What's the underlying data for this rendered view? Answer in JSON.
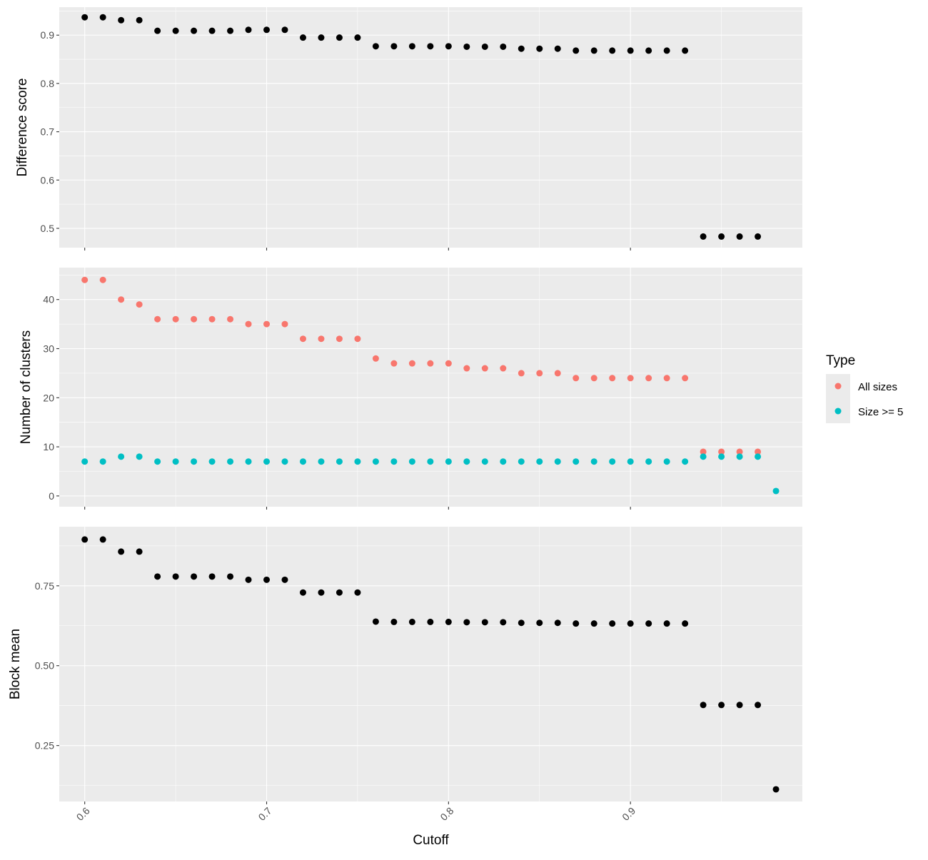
{
  "chart_data": [
    {
      "type": "scatter",
      "ylabel": "Difference score",
      "xlim": [
        0.586,
        0.9945
      ],
      "ylim": [
        0.46,
        0.958
      ],
      "yticks": [
        0.5,
        0.6,
        0.7,
        0.8,
        0.9
      ],
      "ytick_labels": [
        "0.5",
        "0.6",
        "0.7",
        "0.8",
        "0.9"
      ],
      "series": [
        {
          "color": "#000000",
          "x": [
            0.6,
            0.61,
            0.62,
            0.63,
            0.64,
            0.65,
            0.66,
            0.67,
            0.68,
            0.69,
            0.7,
            0.71,
            0.72,
            0.73,
            0.74,
            0.75,
            0.76,
            0.77,
            0.78,
            0.79,
            0.8,
            0.81,
            0.82,
            0.83,
            0.84,
            0.85,
            0.86,
            0.87,
            0.88,
            0.89,
            0.9,
            0.91,
            0.92,
            0.93,
            0.94,
            0.95,
            0.96,
            0.97
          ],
          "y": [
            0.937,
            0.937,
            0.931,
            0.931,
            0.909,
            0.909,
            0.909,
            0.909,
            0.909,
            0.911,
            0.911,
            0.911,
            0.895,
            0.895,
            0.895,
            0.895,
            0.877,
            0.877,
            0.877,
            0.877,
            0.877,
            0.876,
            0.876,
            0.876,
            0.872,
            0.872,
            0.872,
            0.868,
            0.868,
            0.868,
            0.868,
            0.868,
            0.868,
            0.868,
            0.483,
            0.483,
            0.483,
            0.483
          ]
        }
      ]
    },
    {
      "type": "scatter",
      "ylabel": "Number of clusters",
      "xlim": [
        0.586,
        0.9945
      ],
      "ylim": [
        -2.2,
        46.5
      ],
      "yticks": [
        0,
        10,
        20,
        30,
        40
      ],
      "ytick_labels": [
        "0",
        "10",
        "20",
        "30",
        "40"
      ],
      "legend": {
        "title": "Type",
        "position": "right",
        "entries": [
          "All sizes",
          "Size >= 5"
        ]
      },
      "series": [
        {
          "name": "All sizes",
          "color": "#F8766D",
          "x": [
            0.6,
            0.61,
            0.62,
            0.63,
            0.64,
            0.65,
            0.66,
            0.67,
            0.68,
            0.69,
            0.7,
            0.71,
            0.72,
            0.73,
            0.74,
            0.75,
            0.76,
            0.77,
            0.78,
            0.79,
            0.8,
            0.81,
            0.82,
            0.83,
            0.84,
            0.85,
            0.86,
            0.87,
            0.88,
            0.89,
            0.9,
            0.91,
            0.92,
            0.93,
            0.94,
            0.95,
            0.96,
            0.97
          ],
          "y": [
            44,
            44,
            40,
            39,
            36,
            36,
            36,
            36,
            36,
            35,
            35,
            35,
            32,
            32,
            32,
            32,
            28,
            27,
            27,
            27,
            27,
            26,
            26,
            26,
            25,
            25,
            25,
            24,
            24,
            24,
            24,
            24,
            24,
            24,
            9,
            9,
            9,
            9
          ]
        },
        {
          "name": "Size >= 5",
          "color": "#00BFC4",
          "x": [
            0.6,
            0.61,
            0.62,
            0.63,
            0.64,
            0.65,
            0.66,
            0.67,
            0.68,
            0.69,
            0.7,
            0.71,
            0.72,
            0.73,
            0.74,
            0.75,
            0.76,
            0.77,
            0.78,
            0.79,
            0.8,
            0.81,
            0.82,
            0.83,
            0.84,
            0.85,
            0.86,
            0.87,
            0.88,
            0.89,
            0.9,
            0.91,
            0.92,
            0.93,
            0.94,
            0.95,
            0.96,
            0.97,
            0.98
          ],
          "y": [
            7,
            7,
            8,
            8,
            7,
            7,
            7,
            7,
            7,
            7,
            7,
            7,
            7,
            7,
            7,
            7,
            7,
            7,
            7,
            7,
            7,
            7,
            7,
            7,
            7,
            7,
            7,
            7,
            7,
            7,
            7,
            7,
            7,
            7,
            8,
            8,
            8,
            8,
            1
          ]
        }
      ]
    },
    {
      "type": "scatter",
      "ylabel": "Block mean",
      "xlabel": "Cutoff",
      "xlim": [
        0.586,
        0.9945
      ],
      "ylim": [
        0.075,
        0.935
      ],
      "yticks": [
        0.25,
        0.5,
        0.75
      ],
      "ytick_labels": [
        "0.25",
        "0.50",
        "0.75"
      ],
      "xticks": [
        0.6,
        0.7,
        0.8,
        0.9
      ],
      "xtick_labels": [
        "0.6",
        "0.7",
        "0.8",
        "0.9"
      ],
      "series": [
        {
          "color": "#000000",
          "x": [
            0.6,
            0.61,
            0.62,
            0.63,
            0.64,
            0.65,
            0.66,
            0.67,
            0.68,
            0.69,
            0.7,
            0.71,
            0.72,
            0.73,
            0.74,
            0.75,
            0.76,
            0.77,
            0.78,
            0.79,
            0.8,
            0.81,
            0.82,
            0.83,
            0.84,
            0.85,
            0.86,
            0.87,
            0.88,
            0.89,
            0.9,
            0.91,
            0.92,
            0.93,
            0.94,
            0.95,
            0.96,
            0.97,
            0.98
          ],
          "y": [
            0.895,
            0.895,
            0.857,
            0.857,
            0.779,
            0.779,
            0.779,
            0.779,
            0.779,
            0.769,
            0.769,
            0.769,
            0.729,
            0.729,
            0.729,
            0.729,
            0.638,
            0.637,
            0.637,
            0.637,
            0.637,
            0.636,
            0.636,
            0.636,
            0.634,
            0.634,
            0.634,
            0.632,
            0.632,
            0.632,
            0.632,
            0.632,
            0.632,
            0.632,
            0.377,
            0.377,
            0.377,
            0.377,
            0.113
          ]
        }
      ]
    }
  ]
}
